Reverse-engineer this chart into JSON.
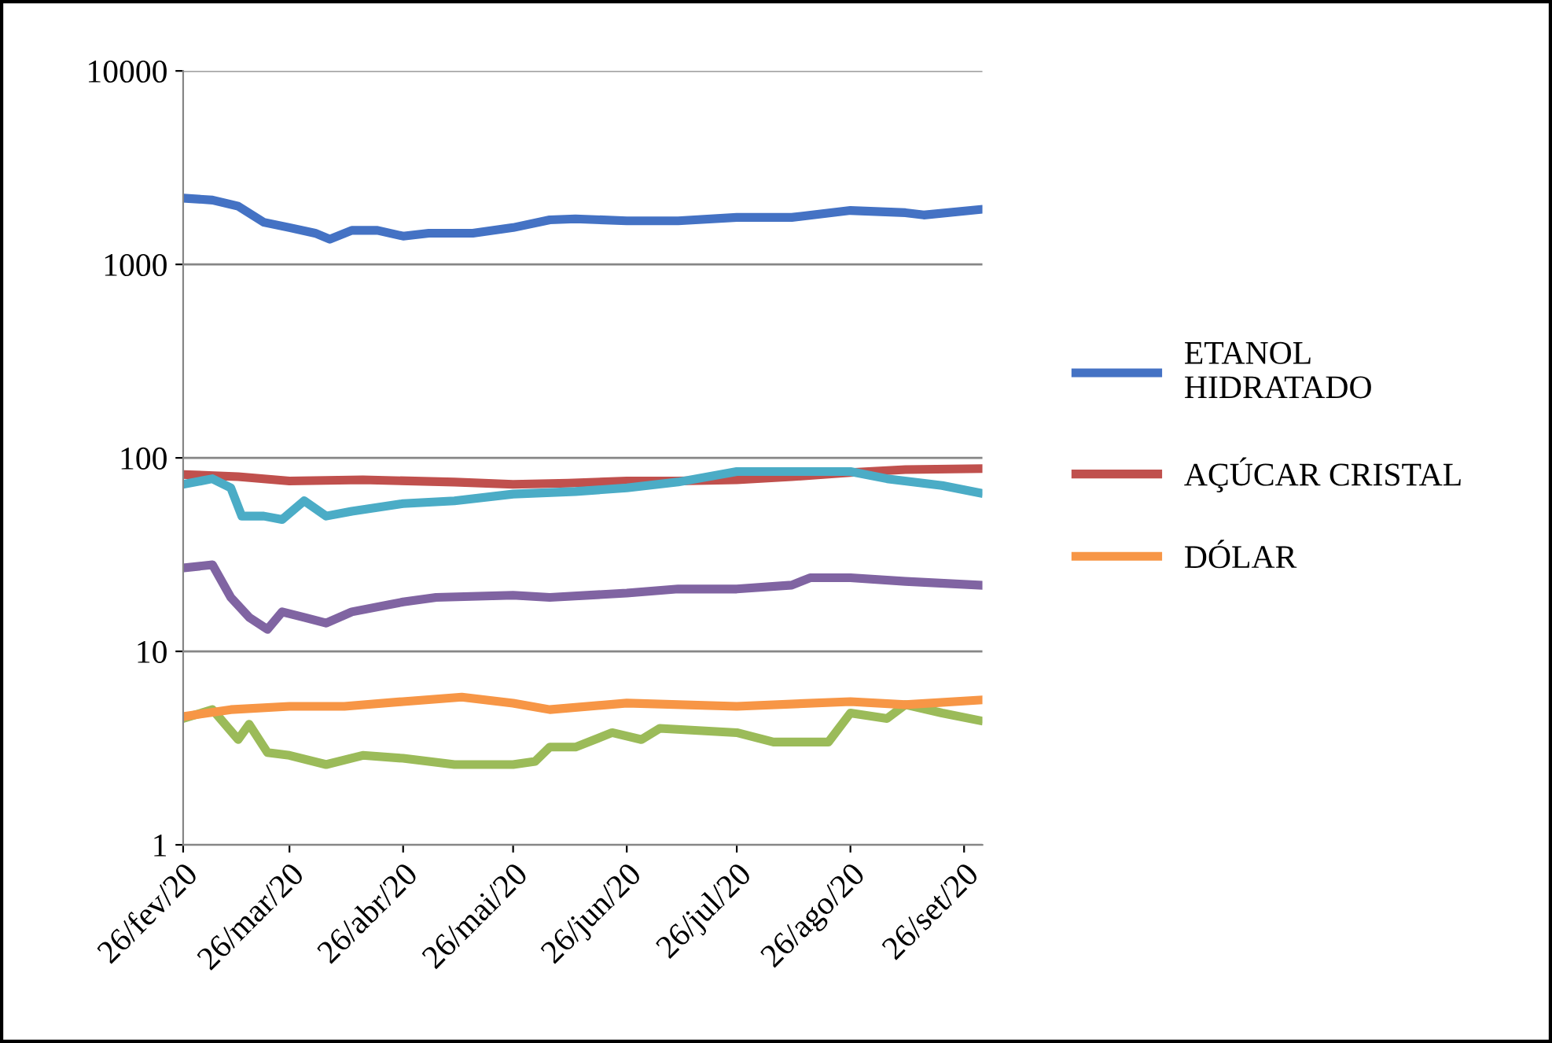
{
  "chart_data": {
    "type": "line",
    "log": "y",
    "grid": "y",
    "legend": "right",
    "marker": "none",
    "line_style": "solid",
    "xlim": [
      "2020-02-26",
      "2020-10-01"
    ],
    "xticks": [
      {
        "value": "2020-02-26",
        "label": "26/fev/20"
      },
      {
        "value": "2020-03-26",
        "label": "26/mar/20"
      },
      {
        "value": "2020-04-26",
        "label": "26/abr/20"
      },
      {
        "value": "2020-05-26",
        "label": "26/mai/20"
      },
      {
        "value": "2020-06-26",
        "label": "26/jun/20"
      },
      {
        "value": "2020-07-26",
        "label": "26/jul/20"
      },
      {
        "value": "2020-08-26",
        "label": "26/ago/20"
      },
      {
        "value": "2020-09-26",
        "label": "26/set/20"
      }
    ],
    "ylim": [
      1,
      10000
    ],
    "yticks": [
      1,
      10,
      100,
      1000,
      10000
    ],
    "series": [
      {
        "name": "ETANOL\nHIDRATADO",
        "color": "#4472c4",
        "x": [
          "2020-02-26",
          "2020-03-05",
          "2020-03-12",
          "2020-03-19",
          "2020-03-26",
          "2020-04-02",
          "2020-04-06",
          "2020-04-12",
          "2020-04-19",
          "2020-04-26",
          "2020-05-03",
          "2020-05-15",
          "2020-05-26",
          "2020-06-05",
          "2020-06-12",
          "2020-06-26",
          "2020-07-10",
          "2020-07-26",
          "2020-08-10",
          "2020-08-26",
          "2020-09-10",
          "2020-09-15",
          "2020-09-30"
        ],
        "values": [
          2200,
          2150,
          2000,
          1650,
          1550,
          1450,
          1350,
          1500,
          1500,
          1400,
          1450,
          1450,
          1550,
          1700,
          1720,
          1680,
          1680,
          1750,
          1750,
          1900,
          1850,
          1800,
          1920
        ]
      },
      {
        "name": "AÇÚCAR CRISTAL",
        "color": "#c0504d",
        "x": [
          "2020-02-26",
          "2020-03-12",
          "2020-03-26",
          "2020-04-15",
          "2020-05-10",
          "2020-05-26",
          "2020-06-10",
          "2020-06-26",
          "2020-07-10",
          "2020-07-26",
          "2020-08-10",
          "2020-08-26",
          "2020-09-10",
          "2020-09-30"
        ],
        "values": [
          82,
          80,
          76,
          77,
          75,
          73,
          74,
          76,
          76,
          77,
          80,
          84,
          87,
          88
        ]
      },
      {
        "color": "#9bbb59",
        "x": [
          "2020-02-26",
          "2020-03-05",
          "2020-03-12",
          "2020-03-15",
          "2020-03-20",
          "2020-03-26",
          "2020-04-05",
          "2020-04-15",
          "2020-04-26",
          "2020-05-10",
          "2020-05-26",
          "2020-06-01",
          "2020-06-05",
          "2020-06-12",
          "2020-06-22",
          "2020-06-30",
          "2020-07-05",
          "2020-07-26",
          "2020-08-05",
          "2020-08-20",
          "2020-08-26",
          "2020-09-05",
          "2020-09-10",
          "2020-09-20",
          "2020-09-30"
        ],
        "values": [
          4.5,
          5,
          3.5,
          4.2,
          3.0,
          2.9,
          2.6,
          2.9,
          2.8,
          2.6,
          2.6,
          2.7,
          3.2,
          3.2,
          3.8,
          3.5,
          4.0,
          3.8,
          3.4,
          3.4,
          4.8,
          4.5,
          5.3,
          4.8,
          4.4
        ]
      },
      {
        "color": "#8064a2",
        "x": [
          "2020-02-26",
          "2020-03-05",
          "2020-03-10",
          "2020-03-15",
          "2020-03-20",
          "2020-03-24",
          "2020-03-30",
          "2020-04-05",
          "2020-04-12",
          "2020-04-26",
          "2020-05-05",
          "2020-05-26",
          "2020-06-05",
          "2020-06-26",
          "2020-07-10",
          "2020-07-26",
          "2020-08-10",
          "2020-08-15",
          "2020-08-26",
          "2020-09-10",
          "2020-09-30"
        ],
        "values": [
          27,
          28,
          19,
          15,
          13,
          16,
          15,
          14,
          16,
          18,
          19,
          19.5,
          19,
          20,
          21,
          21,
          22,
          24,
          24,
          23,
          22
        ]
      },
      {
        "color": "#4bacc6",
        "x": [
          "2020-02-26",
          "2020-03-05",
          "2020-03-10",
          "2020-03-13",
          "2020-03-19",
          "2020-03-24",
          "2020-03-30",
          "2020-04-05",
          "2020-04-12",
          "2020-04-26",
          "2020-05-10",
          "2020-05-26",
          "2020-06-12",
          "2020-06-26",
          "2020-07-10",
          "2020-07-26",
          "2020-08-05",
          "2020-08-26",
          "2020-09-05",
          "2020-09-20",
          "2020-09-30"
        ],
        "values": [
          73,
          78,
          70,
          50,
          50,
          48,
          60,
          50,
          53,
          58,
          60,
          65,
          67,
          70,
          75,
          85,
          85,
          85,
          78,
          72,
          66
        ]
      },
      {
        "name": "DÓLAR",
        "color": "#f79646",
        "x": [
          "2020-02-26",
          "2020-03-10",
          "2020-03-26",
          "2020-04-10",
          "2020-04-26",
          "2020-05-12",
          "2020-05-26",
          "2020-06-05",
          "2020-06-26",
          "2020-07-26",
          "2020-08-26",
          "2020-09-10",
          "2020-09-30"
        ],
        "values": [
          4.6,
          5.0,
          5.2,
          5.2,
          5.5,
          5.8,
          5.4,
          5.0,
          5.4,
          5.2,
          5.5,
          5.3,
          5.6
        ]
      }
    ]
  }
}
